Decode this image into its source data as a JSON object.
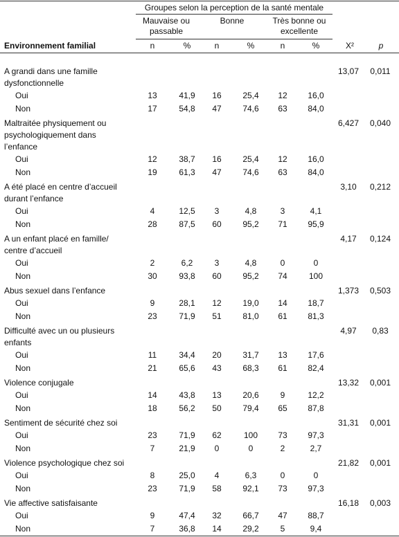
{
  "header": {
    "group_title": "Groupes selon la perception de la santé mentale",
    "groups": [
      {
        "label_lines": [
          "Mauvaise ou",
          "passable"
        ]
      },
      {
        "label_lines": [
          "Bonne"
        ]
      },
      {
        "label_lines": [
          "Très bonne ou",
          "excellente"
        ]
      }
    ],
    "columns": {
      "label": "Environnement familial",
      "sub": [
        "n",
        "%",
        "n",
        "%",
        "n",
        "%"
      ],
      "x2": "X²",
      "p": "p"
    }
  },
  "sections": [
    {
      "label_lines": [
        "A grandi dans une famille",
        "dysfonctionnelle"
      ],
      "x2": "13,07",
      "p": "0,011",
      "rows": [
        {
          "label": "Oui",
          "values": [
            "13",
            "41,9",
            "16",
            "25,4",
            "12",
            "16,0"
          ]
        },
        {
          "label": "Non",
          "values": [
            "17",
            "54,8",
            "47",
            "74,6",
            "63",
            "84,0"
          ]
        }
      ]
    },
    {
      "label_lines": [
        "Maltraitée physiquement ou",
        "psychologiquement dans",
        "l’enfance"
      ],
      "x2": "6,427",
      "p": "0,040",
      "rows": [
        {
          "label": "Oui",
          "values": [
            "12",
            "38,7",
            "16",
            "25,4",
            "12",
            "16,0"
          ]
        },
        {
          "label": "Non",
          "values": [
            "19",
            "61,3",
            "47",
            "74,6",
            "63",
            "84,0"
          ]
        }
      ]
    },
    {
      "label_lines": [
        "A été placé en centre d’accueil",
        "durant l’enfance"
      ],
      "x2": "3,10",
      "p": "0,212",
      "rows": [
        {
          "label": "Oui",
          "values": [
            "4",
            "12,5",
            "3",
            "4,8",
            "3",
            "4,1"
          ]
        },
        {
          "label": "Non",
          "values": [
            "28",
            "87,5",
            "60",
            "95,2",
            "71",
            "95,9"
          ]
        }
      ]
    },
    {
      "label_lines": [
        "A un enfant placé en famille/",
        "centre d’accueil"
      ],
      "x2": "4,17",
      "p": "0,124",
      "rows": [
        {
          "label": "Oui",
          "values": [
            "2",
            "6,2",
            "3",
            "4,8",
            "0",
            "0"
          ]
        },
        {
          "label": "Non",
          "values": [
            "30",
            "93,8",
            "60",
            "95,2",
            "74",
            "100"
          ]
        }
      ]
    },
    {
      "label_lines": [
        "Abus sexuel dans l’enfance"
      ],
      "x2": "1,373",
      "p": "0,503",
      "rows": [
        {
          "label": "Oui",
          "values": [
            "9",
            "28,1",
            "12",
            "19,0",
            "14",
            "18,7"
          ]
        },
        {
          "label": "Non",
          "values": [
            "23",
            "71,9",
            "51",
            "81,0",
            "61",
            "81,3"
          ]
        }
      ]
    },
    {
      "label_lines": [
        "Difficulté avec un ou plusieurs",
        "enfants"
      ],
      "x2": "4,97",
      "p": "0,83",
      "rows": [
        {
          "label": "Oui",
          "values": [
            "11",
            "34,4",
            "20",
            "31,7",
            "13",
            "17,6"
          ]
        },
        {
          "label": "Non",
          "values": [
            "21",
            "65,6",
            "43",
            "68,3",
            "61",
            "82,4"
          ]
        }
      ]
    },
    {
      "label_lines": [
        "Violence conjugale"
      ],
      "x2": "13,32",
      "p": "0,001",
      "rows": [
        {
          "label": "Oui",
          "values": [
            "14",
            "43,8",
            "13",
            "20,6",
            "9",
            "12,2"
          ]
        },
        {
          "label": "Non",
          "values": [
            "18",
            "56,2",
            "50",
            "79,4",
            "65",
            "87,8"
          ]
        }
      ]
    },
    {
      "label_lines": [
        "Sentiment de sécurité chez soi"
      ],
      "x2": "31,31",
      "p": "0,001",
      "rows": [
        {
          "label": "Oui",
          "values": [
            "23",
            "71,9",
            "62",
            "100",
            "73",
            "97,3"
          ]
        },
        {
          "label": "Non",
          "values": [
            "7",
            "21,9",
            "0",
            "0",
            "2",
            "2,7"
          ]
        }
      ]
    },
    {
      "label_lines": [
        "Violence psychologique chez soi"
      ],
      "x2": "21,82",
      "p": "0,001",
      "rows": [
        {
          "label": "Oui",
          "values": [
            "8",
            "25,0",
            "4",
            "6,3",
            "0",
            "0"
          ]
        },
        {
          "label": "Non",
          "values": [
            "23",
            "71,9",
            "58",
            "92,1",
            "73",
            "97,3"
          ]
        }
      ]
    },
    {
      "label_lines": [
        "Vie affective satisfaisante"
      ],
      "x2": "16,18",
      "p": "0,003",
      "rows": [
        {
          "label": "Oui",
          "values": [
            "9",
            "47,4",
            "32",
            "66,7",
            "47",
            "88,7"
          ]
        },
        {
          "label": "Non",
          "values": [
            "7",
            "36,8",
            "14",
            "29,2",
            "5",
            "9,4"
          ]
        }
      ]
    }
  ]
}
